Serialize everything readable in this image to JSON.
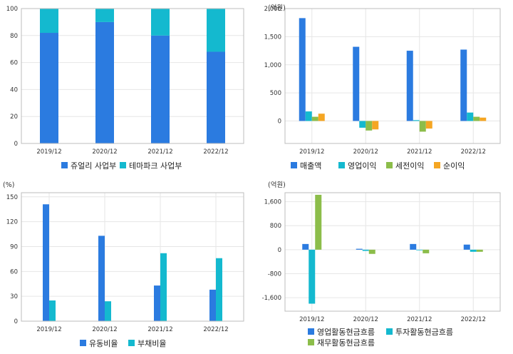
{
  "colors": {
    "blue": "#2b7be0",
    "cyan": "#14b9cf",
    "green": "#8cbd4a",
    "orange": "#f5a623",
    "grid": "#e6e6e6",
    "frame": "#bdbdbd"
  },
  "chart_data": [
    {
      "type": "bar",
      "stacked": true,
      "unit": "",
      "categories": [
        "2019/12",
        "2020/12",
        "2021/12",
        "2022/12"
      ],
      "ylim": [
        0,
        100
      ],
      "yticks": [
        0,
        20,
        40,
        60,
        80,
        100
      ],
      "ytick_labels": [
        "0",
        "20",
        "40",
        "60",
        "80",
        "100"
      ],
      "series": [
        {
          "name": "쥬얼리 사업부",
          "color": "#2b7be0",
          "values": [
            82,
            90,
            80,
            68
          ]
        },
        {
          "name": "테마파크 사업부",
          "color": "#14b9cf",
          "values": [
            18,
            10,
            20,
            32
          ]
        }
      ],
      "legend": "bottom"
    },
    {
      "type": "bar",
      "stacked": false,
      "unit": "(억원)",
      "categories": [
        "2019/12",
        "2020/12",
        "2021/12",
        "2022/12"
      ],
      "ylim": [
        -400,
        2000
      ],
      "yticks": [
        0,
        500,
        1000,
        1500,
        2000
      ],
      "ytick_labels": [
        "0",
        "500",
        "1,000",
        "1,500",
        "2,000"
      ],
      "series": [
        {
          "name": "매출액",
          "color": "#2b7be0",
          "values": [
            1830,
            1320,
            1250,
            1270
          ]
        },
        {
          "name": "영업이익",
          "color": "#14b9cf",
          "values": [
            170,
            -120,
            15,
            150
          ]
        },
        {
          "name": "세전이익",
          "color": "#8cbd4a",
          "values": [
            75,
            -170,
            -190,
            75
          ]
        },
        {
          "name": "순이익",
          "color": "#f5a623",
          "values": [
            130,
            -150,
            -135,
            60
          ]
        }
      ],
      "legend": "bottom"
    },
    {
      "type": "bar",
      "stacked": false,
      "unit": "(%)",
      "categories": [
        "2019/12",
        "2020/12",
        "2021/12",
        "2022/12"
      ],
      "ylim": [
        0,
        155
      ],
      "yticks": [
        0,
        30,
        60,
        90,
        120,
        150
      ],
      "ytick_labels": [
        "0",
        "30",
        "60",
        "90",
        "120",
        "150"
      ],
      "series": [
        {
          "name": "유동비율",
          "color": "#2b7be0",
          "values": [
            141,
            103,
            43,
            38
          ]
        },
        {
          "name": "부채비율",
          "color": "#14b9cf",
          "values": [
            25,
            24,
            82,
            76
          ]
        }
      ],
      "legend": "bottom"
    },
    {
      "type": "bar",
      "stacked": false,
      "unit": "(억원)",
      "categories": [
        "2019/12",
        "2020/12",
        "2021/12",
        "2022/12"
      ],
      "ylim": [
        -2050,
        1900
      ],
      "yticks": [
        -1600,
        -800,
        0,
        800,
        1600
      ],
      "ytick_labels": [
        "-1,600",
        "-800",
        "0",
        "800",
        "1,600"
      ],
      "series": [
        {
          "name": "영업활동현금흐름",
          "color": "#2b7be0",
          "values": [
            190,
            30,
            190,
            170
          ]
        },
        {
          "name": "투자활동현금흐름",
          "color": "#14b9cf",
          "values": [
            -1800,
            -40,
            0,
            -70
          ]
        },
        {
          "name": "재무활동현금흐름",
          "color": "#8cbd4a",
          "values": [
            1830,
            -140,
            -120,
            -70
          ]
        }
      ],
      "legend": "bottom-two-rows"
    }
  ]
}
